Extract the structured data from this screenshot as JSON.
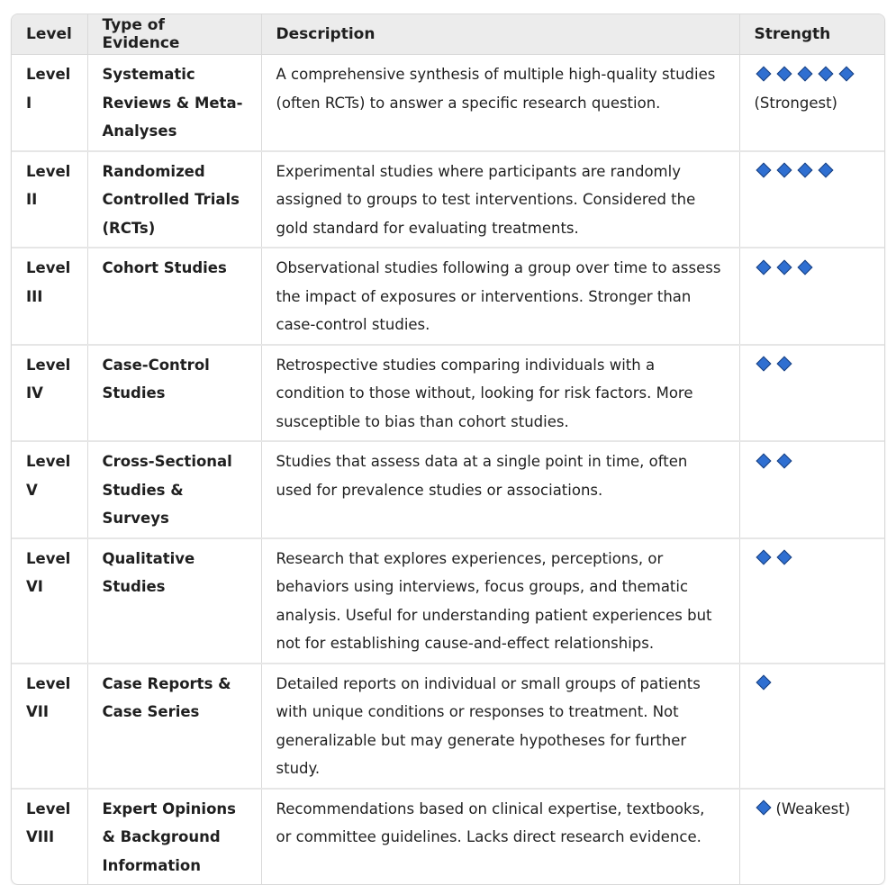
{
  "headers": [
    "Level",
    "Type of Evidence",
    "Description",
    "Strength"
  ],
  "rows": [
    {
      "level": "Level I",
      "type": "Systematic Reviews & Meta-Analyses",
      "description": "A comprehensive synthesis of multiple high-quality studies (often RCTs) to answer a specific research question.",
      "diamonds": 5,
      "note": "(Strongest)"
    },
    {
      "level": "Level II",
      "type": "Randomized Controlled Trials (RCTs)",
      "description": "Experimental studies where participants are randomly assigned to groups to test interventions. Considered the gold standard for evaluating treatments.",
      "diamonds": 4,
      "note": ""
    },
    {
      "level": "Level III",
      "type": "Cohort Studies",
      "description": "Observational studies following a group over time to assess the impact of exposures or interventions. Stronger than case-control studies.",
      "diamonds": 3,
      "note": ""
    },
    {
      "level": "Level IV",
      "type": "Case-Control Studies",
      "description": "Retrospective studies comparing individuals with a condition to those without, looking for risk factors. More susceptible to bias than cohort studies.",
      "diamonds": 2,
      "note": ""
    },
    {
      "level": "Level V",
      "type": "Cross-Sectional Studies & Surveys",
      "description": "Studies that assess data at a single point in time, often used for prevalence studies or associations.",
      "diamonds": 2,
      "note": ""
    },
    {
      "level": "Level VI",
      "type": "Qualitative Studies",
      "description": "Research that explores experiences, perceptions, or behaviors using interviews, focus groups, and thematic analysis. Useful for understanding patient experiences but not for establishing cause-and-effect relationships.",
      "diamonds": 2,
      "note": ""
    },
    {
      "level": "Level VII",
      "type": "Case Reports & Case Series",
      "description": "Detailed reports on individual or small groups of patients with unique conditions or responses to treatment. Not generalizable but may generate hypotheses for further study.",
      "diamonds": 1,
      "note": ""
    },
    {
      "level": "Level VIII",
      "type": "Expert Opinions & Background Information",
      "description": "Recommendations based on clinical expertise, textbooks, or committee guidelines. Lacks direct research evidence.",
      "diamonds": 1,
      "note": "(Weakest)"
    }
  ],
  "colors": {
    "diamond_fill": "#2f6fd1",
    "diamond_border": "#173e7d",
    "header_bg": "#ececec"
  },
  "icons": {
    "strength_marker": "diamond-icon"
  }
}
